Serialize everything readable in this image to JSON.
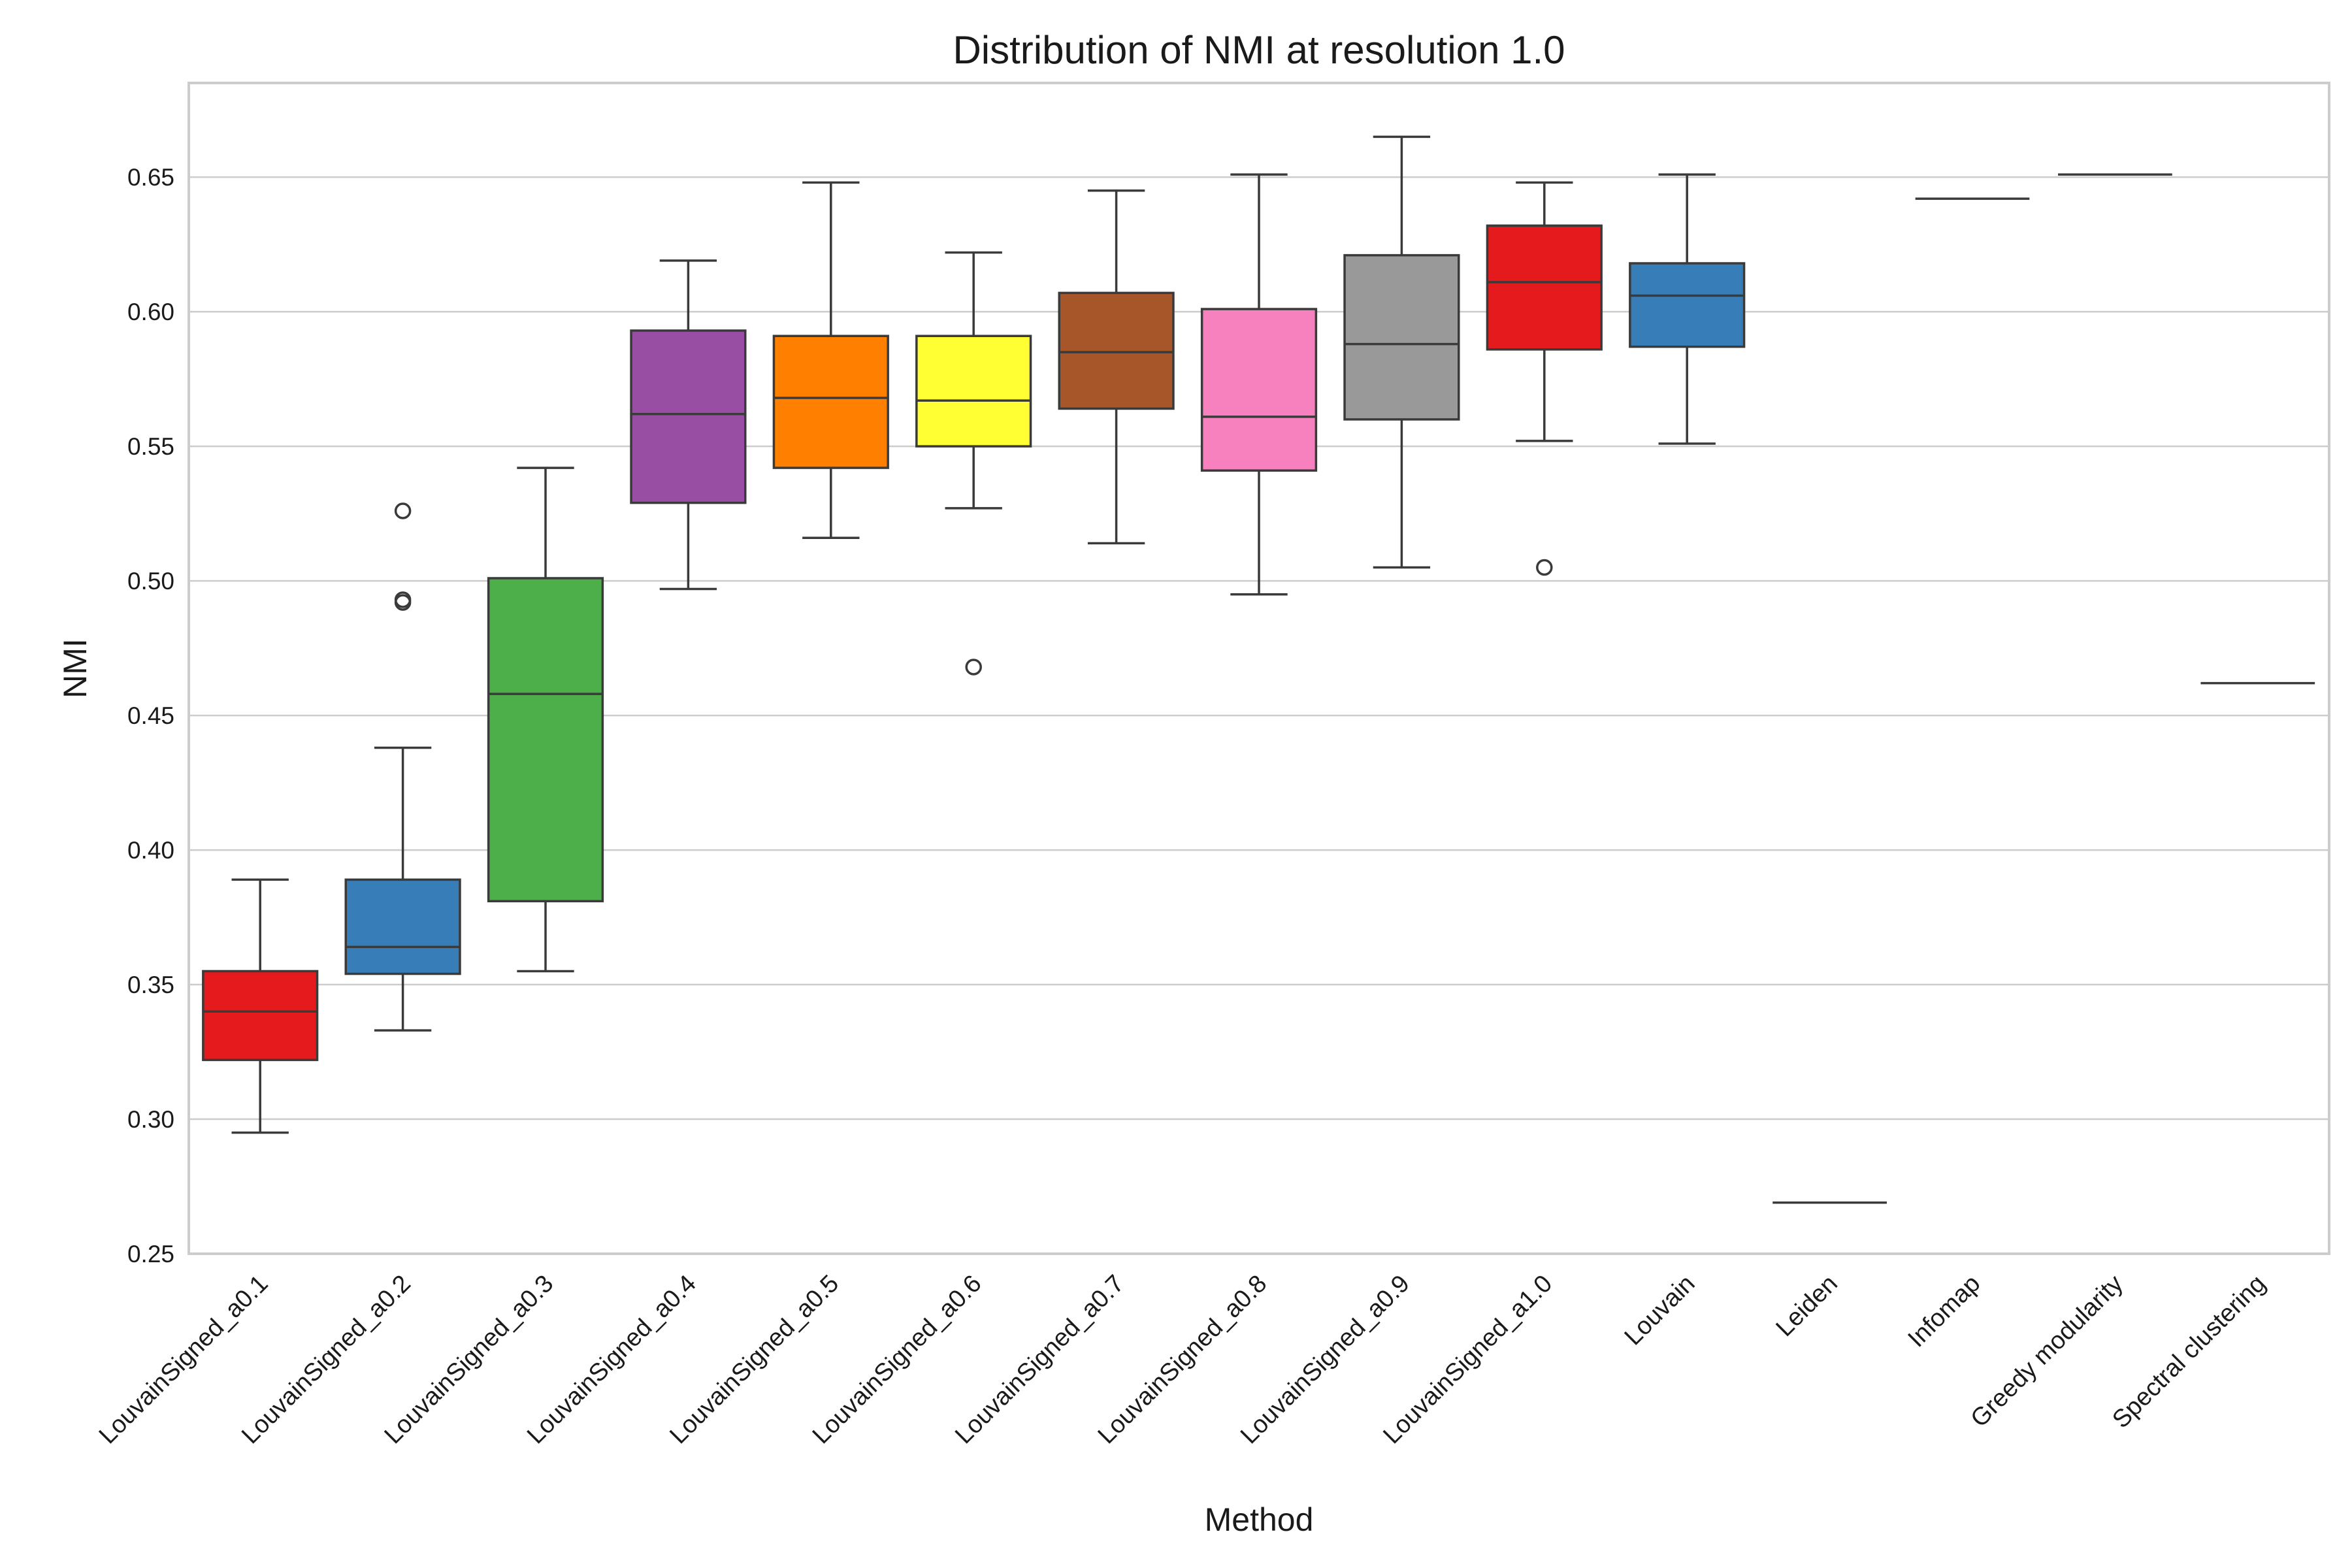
{
  "chart_data": {
    "type": "box",
    "title": "Distribution of NMI at resolution 1.0",
    "xlabel": "Method",
    "ylabel": "NMI",
    "ylim": [
      0.25,
      0.685
    ],
    "yticks": [
      0.25,
      0.3,
      0.35,
      0.4,
      0.45,
      0.5,
      0.55,
      0.6,
      0.65
    ],
    "ytick_labels": [
      "0.25",
      "0.30",
      "0.35",
      "0.40",
      "0.45",
      "0.50",
      "0.55",
      "0.60",
      "0.65"
    ],
    "grid": "horizontal",
    "categories": [
      "LouvainSigned_a0.1",
      "LouvainSigned_a0.2",
      "LouvainSigned_a0.3",
      "LouvainSigned_a0.4",
      "LouvainSigned_a0.5",
      "LouvainSigned_a0.6",
      "LouvainSigned_a0.7",
      "LouvainSigned_a0.8",
      "LouvainSigned_a0.9",
      "LouvainSigned_a1.0",
      "Louvain",
      "Leiden",
      "Infomap",
      "Greedy modularity",
      "Spectral clustering"
    ],
    "boxes": [
      {
        "q1": 0.322,
        "median": 0.34,
        "q3": 0.355,
        "whisker_low": 0.295,
        "whisker_high": 0.389,
        "fliers": [],
        "color": "#e41a1c"
      },
      {
        "q1": 0.354,
        "median": 0.364,
        "q3": 0.389,
        "whisker_low": 0.333,
        "whisker_high": 0.438,
        "fliers": [
          0.526,
          0.493,
          0.492
        ],
        "color": "#377eb8"
      },
      {
        "q1": 0.381,
        "median": 0.458,
        "q3": 0.501,
        "whisker_low": 0.355,
        "whisker_high": 0.542,
        "fliers": [],
        "color": "#4daf4a"
      },
      {
        "q1": 0.529,
        "median": 0.562,
        "q3": 0.593,
        "whisker_low": 0.497,
        "whisker_high": 0.619,
        "fliers": [],
        "color": "#984ea3"
      },
      {
        "q1": 0.542,
        "median": 0.568,
        "q3": 0.591,
        "whisker_low": 0.516,
        "whisker_high": 0.648,
        "fliers": [],
        "color": "#ff7f00"
      },
      {
        "q1": 0.55,
        "median": 0.567,
        "q3": 0.591,
        "whisker_low": 0.527,
        "whisker_high": 0.622,
        "fliers": [
          0.468
        ],
        "color": "#ffff33"
      },
      {
        "q1": 0.564,
        "median": 0.585,
        "q3": 0.607,
        "whisker_low": 0.514,
        "whisker_high": 0.645,
        "fliers": [],
        "color": "#a65628"
      },
      {
        "q1": 0.541,
        "median": 0.561,
        "q3": 0.601,
        "whisker_low": 0.495,
        "whisker_high": 0.651,
        "fliers": [],
        "color": "#f781bf"
      },
      {
        "q1": 0.56,
        "median": 0.588,
        "q3": 0.621,
        "whisker_low": 0.505,
        "whisker_high": 0.665,
        "fliers": [],
        "color": "#999999"
      },
      {
        "q1": 0.586,
        "median": 0.611,
        "q3": 0.632,
        "whisker_low": 0.552,
        "whisker_high": 0.648,
        "fliers": [
          0.505
        ],
        "color": "#e41a1c"
      },
      {
        "q1": 0.587,
        "median": 0.606,
        "q3": 0.618,
        "whisker_low": 0.551,
        "whisker_high": 0.651,
        "fliers": [],
        "color": "#377eb8"
      },
      {
        "q1": 0.269,
        "median": 0.269,
        "q3": 0.269,
        "whisker_low": 0.269,
        "whisker_high": 0.269,
        "fliers": [],
        "color": "#4daf4a"
      },
      {
        "q1": 0.642,
        "median": 0.642,
        "q3": 0.642,
        "whisker_low": 0.642,
        "whisker_high": 0.642,
        "fliers": [],
        "color": "#984ea3"
      },
      {
        "q1": 0.651,
        "median": 0.651,
        "q3": 0.651,
        "whisker_low": 0.651,
        "whisker_high": 0.651,
        "fliers": [],
        "color": "#ff7f00"
      },
      {
        "q1": 0.462,
        "median": 0.462,
        "q3": 0.462,
        "whisker_low": 0.462,
        "whisker_high": 0.462,
        "fliers": [],
        "color": "#ffff33"
      }
    ]
  }
}
